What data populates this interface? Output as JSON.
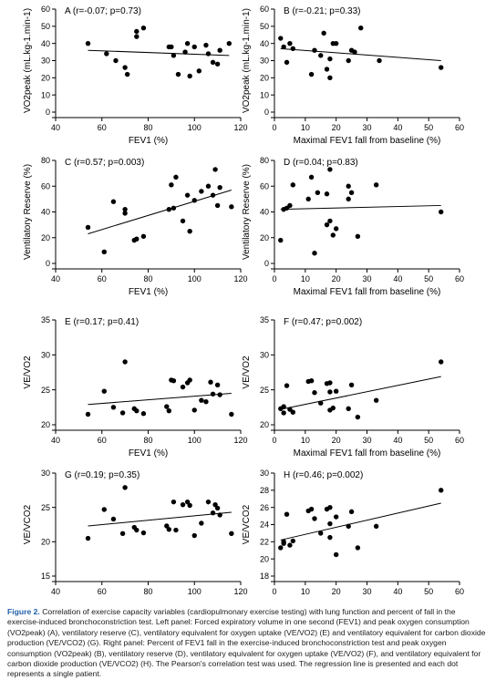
{
  "chart_data": [
    {
      "panel": "A",
      "type": "scatter",
      "title": "A (r=-0.07; p=0.73)",
      "xlabel": "FEV1 (%)",
      "ylabel": "VO2peak (mL.kg-1.min-1)",
      "xlim": [
        40,
        120
      ],
      "ylim": [
        0,
        60
      ],
      "xticks": [
        40,
        60,
        80,
        100,
        120
      ],
      "yticks": [
        0,
        10,
        20,
        30,
        40,
        50,
        60
      ],
      "x": [
        54,
        62,
        66,
        70,
        71,
        75,
        75,
        78,
        89,
        90,
        91,
        93,
        96,
        97,
        98,
        100,
        102,
        105,
        106,
        108,
        110,
        111,
        115
      ],
      "y": [
        40,
        34,
        30,
        26,
        22,
        44,
        47,
        49,
        38,
        38,
        33,
        22,
        35,
        40,
        21,
        38,
        24,
        39,
        34,
        29,
        28,
        36,
        40
      ],
      "regression": [
        [
          54,
          36
        ],
        [
          115,
          33
        ]
      ]
    },
    {
      "panel": "B",
      "type": "scatter",
      "title": "B (r=-0.21; p=0.33)",
      "xlabel": "Maximal FEV1 fall from baseline (%)",
      "ylabel": "VO2peak (mL.kg-1.min-1)",
      "xlim": [
        0,
        60
      ],
      "ylim": [
        0,
        60
      ],
      "xticks": [
        0,
        10,
        20,
        30,
        40,
        50,
        60
      ],
      "yticks": [
        0,
        10,
        20,
        30,
        40,
        50,
        60
      ],
      "x": [
        2,
        3,
        4,
        5,
        6,
        12,
        13,
        15,
        16,
        17,
        18,
        18,
        19,
        20,
        24,
        25,
        26,
        28,
        34,
        54
      ],
      "y": [
        43,
        38,
        29,
        40,
        37,
        22,
        36,
        33,
        46,
        25,
        31,
        20,
        40,
        40,
        30,
        36,
        35,
        49,
        30,
        26
      ],
      "regression": [
        [
          2,
          37
        ],
        [
          54,
          30
        ]
      ]
    },
    {
      "panel": "C",
      "type": "scatter",
      "title": "C (r=0.57; p=0.003)",
      "xlabel": "FEV1 (%)",
      "ylabel": "Ventilatory Reserve (%)",
      "xlim": [
        40,
        120
      ],
      "ylim": [
        0,
        80
      ],
      "xticks": [
        40,
        60,
        80,
        100,
        120
      ],
      "yticks": [
        0,
        20,
        40,
        60,
        80
      ],
      "x": [
        54,
        61,
        65,
        70,
        70,
        74,
        75,
        78,
        89,
        90,
        91,
        92,
        95,
        97,
        98,
        100,
        103,
        106,
        108,
        109,
        110,
        111,
        116
      ],
      "y": [
        28,
        9,
        48,
        42,
        39,
        18,
        19,
        21,
        42,
        61,
        43,
        67,
        33,
        53,
        25,
        49,
        56,
        60,
        53,
        73,
        45,
        59,
        44
      ],
      "regression": [
        [
          54,
          23
        ],
        [
          116,
          57
        ]
      ]
    },
    {
      "panel": "D",
      "type": "scatter",
      "title": "D (r=0.04; p=0.83)",
      "xlabel": "Maximal FEV1 fall from baseline (%)",
      "ylabel": "Ventilatory Reserve (%)",
      "xlim": [
        0,
        60
      ],
      "ylim": [
        0,
        80
      ],
      "xticks": [
        0,
        10,
        20,
        30,
        40,
        50,
        60
      ],
      "yticks": [
        0,
        20,
        40,
        60,
        80
      ],
      "x": [
        2,
        3,
        4,
        5,
        6,
        11,
        12,
        13,
        14,
        17,
        17,
        18,
        18,
        19,
        20,
        24,
        24,
        25,
        27,
        33,
        54
      ],
      "y": [
        18,
        42,
        43,
        45,
        61,
        50,
        67,
        8,
        55,
        54,
        30,
        73,
        33,
        22,
        27,
        50,
        60,
        55,
        21,
        61,
        40
      ],
      "regression": [
        [
          2,
          42
        ],
        [
          54,
          45
        ]
      ]
    },
    {
      "panel": "E",
      "type": "scatter",
      "title": "E (r=0.17; p=0.41)",
      "xlabel": "FEV1 (%)",
      "ylabel": "VE/VO2",
      "xlim": [
        40,
        120
      ],
      "ylim": [
        20,
        35
      ],
      "xticks": [
        40,
        60,
        80,
        100,
        120
      ],
      "yticks": [
        20,
        25,
        30,
        35
      ],
      "x": [
        54,
        61,
        65,
        69,
        70,
        74,
        75,
        78,
        88,
        89,
        90,
        91,
        95,
        97,
        98,
        100,
        103,
        105,
        107,
        108,
        110,
        111,
        116
      ],
      "y": [
        21.5,
        24.8,
        22.5,
        21.7,
        29.0,
        22.3,
        22.0,
        21.6,
        22.6,
        22.0,
        26.4,
        26.3,
        25.4,
        26.0,
        26.4,
        22.1,
        23.5,
        23.3,
        26.1,
        24.4,
        25.7,
        24.3,
        21.5
      ],
      "regression": [
        [
          54,
          22.9
        ],
        [
          116,
          24.5
        ]
      ]
    },
    {
      "panel": "F",
      "type": "scatter",
      "title": "F (r=0.47; p=0.002)",
      "xlabel": "Maximal FEV1 fall from baseline (%)",
      "ylabel": "VE/VO2",
      "xlim": [
        0,
        60
      ],
      "ylim": [
        20,
        35
      ],
      "xticks": [
        0,
        10,
        20,
        30,
        40,
        50,
        60
      ],
      "yticks": [
        20,
        25,
        30,
        35
      ],
      "x": [
        2,
        3,
        3,
        4,
        5,
        6,
        11,
        12,
        13,
        15,
        17,
        18,
        18,
        18,
        19,
        20,
        24,
        25,
        27,
        33,
        54
      ],
      "y": [
        22.3,
        21.7,
        22.6,
        25.6,
        22.2,
        21.8,
        26.2,
        26.3,
        24.6,
        23.1,
        25.9,
        26.0,
        24.7,
        22.1,
        22.4,
        24.8,
        22.3,
        25.7,
        21.1,
        23.5,
        29.0
      ],
      "regression": [
        [
          2,
          22.2
        ],
        [
          54,
          26.9
        ]
      ]
    },
    {
      "panel": "G",
      "type": "scatter",
      "title": "G (r=0.19; p=0.35)",
      "xlabel": "FEV1 (%)",
      "ylabel": "VE/VCO2",
      "xlim": [
        40,
        120
      ],
      "ylim": [
        15,
        30
      ],
      "xticks": [
        40,
        60,
        80,
        100,
        120
      ],
      "yticks": [
        15,
        20,
        25,
        30
      ],
      "x": [
        54,
        61,
        65,
        69,
        70,
        74,
        75,
        78,
        88,
        89,
        91,
        92,
        95,
        97,
        98,
        100,
        103,
        106,
        108,
        109,
        110,
        111,
        116
      ],
      "y": [
        20.5,
        24.7,
        23.3,
        21.2,
        27.9,
        22.1,
        21.7,
        21.3,
        22.3,
        21.8,
        25.8,
        21.7,
        25.4,
        25.8,
        25.3,
        20.9,
        22.7,
        25.8,
        24.2,
        25.4,
        24.9,
        23.9,
        21.2
      ],
      "regression": [
        [
          54,
          22.3
        ],
        [
          116,
          24.3
        ]
      ]
    },
    {
      "panel": "H",
      "type": "scatter",
      "title": "H (r=0.46; p=0.002)",
      "xlabel": "Maximal FEV1 fall from baseline (%)",
      "ylabel": "VE/VCO2",
      "xlim": [
        0,
        60
      ],
      "ylim": [
        18,
        30
      ],
      "xticks": [
        0,
        10,
        20,
        30,
        40,
        50,
        60
      ],
      "yticks": [
        18,
        20,
        22,
        24,
        26,
        28,
        30
      ],
      "x": [
        2,
        3,
        3,
        4,
        5,
        6,
        11,
        12,
        13,
        15,
        17,
        18,
        18,
        18,
        20,
        20,
        24,
        25,
        27,
        33,
        54
      ],
      "y": [
        21.3,
        21.8,
        22.0,
        25.2,
        21.6,
        22.1,
        25.6,
        25.8,
        24.7,
        23.0,
        25.8,
        26.0,
        24.1,
        22.5,
        20.5,
        24.9,
        23.8,
        25.5,
        21.3,
        23.8,
        28.0
      ],
      "regression": [
        [
          2,
          22.2
        ],
        [
          54,
          26.5
        ]
      ]
    }
  ],
  "caption": {
    "figure_label": "Figure 2.",
    "text": " Correlation of exercise capacity variables (cardiopulmonary exercise testing) with lung function and percent of fall in the exercise-induced bronchoconstriction test. Left panel: Forced expiratory volume in one second (FEV1) and peak oxygen consumption (VO2peak) (A), ventilatory reserve (C), ventilatory equivalent for oxygen uptake (VE/VO2) (E) and ventilatory equivalent for carbon dioxide production (VE/VCO2) (G). Right panel: Percent of FEV1 fall in the exercise-induced bronchoconstriction test and peak oxygen consumption (VO2peak) (B), ventilatory reserve (D), ventilatory equivalent for oxygen uptake (VE/VO2) (F), and ventilatory equivalent for carbon dioxide production (VE/VCO2) (H). The Pearson's correlation test was used. The regression line is presented and each dot represents a single patient."
  }
}
